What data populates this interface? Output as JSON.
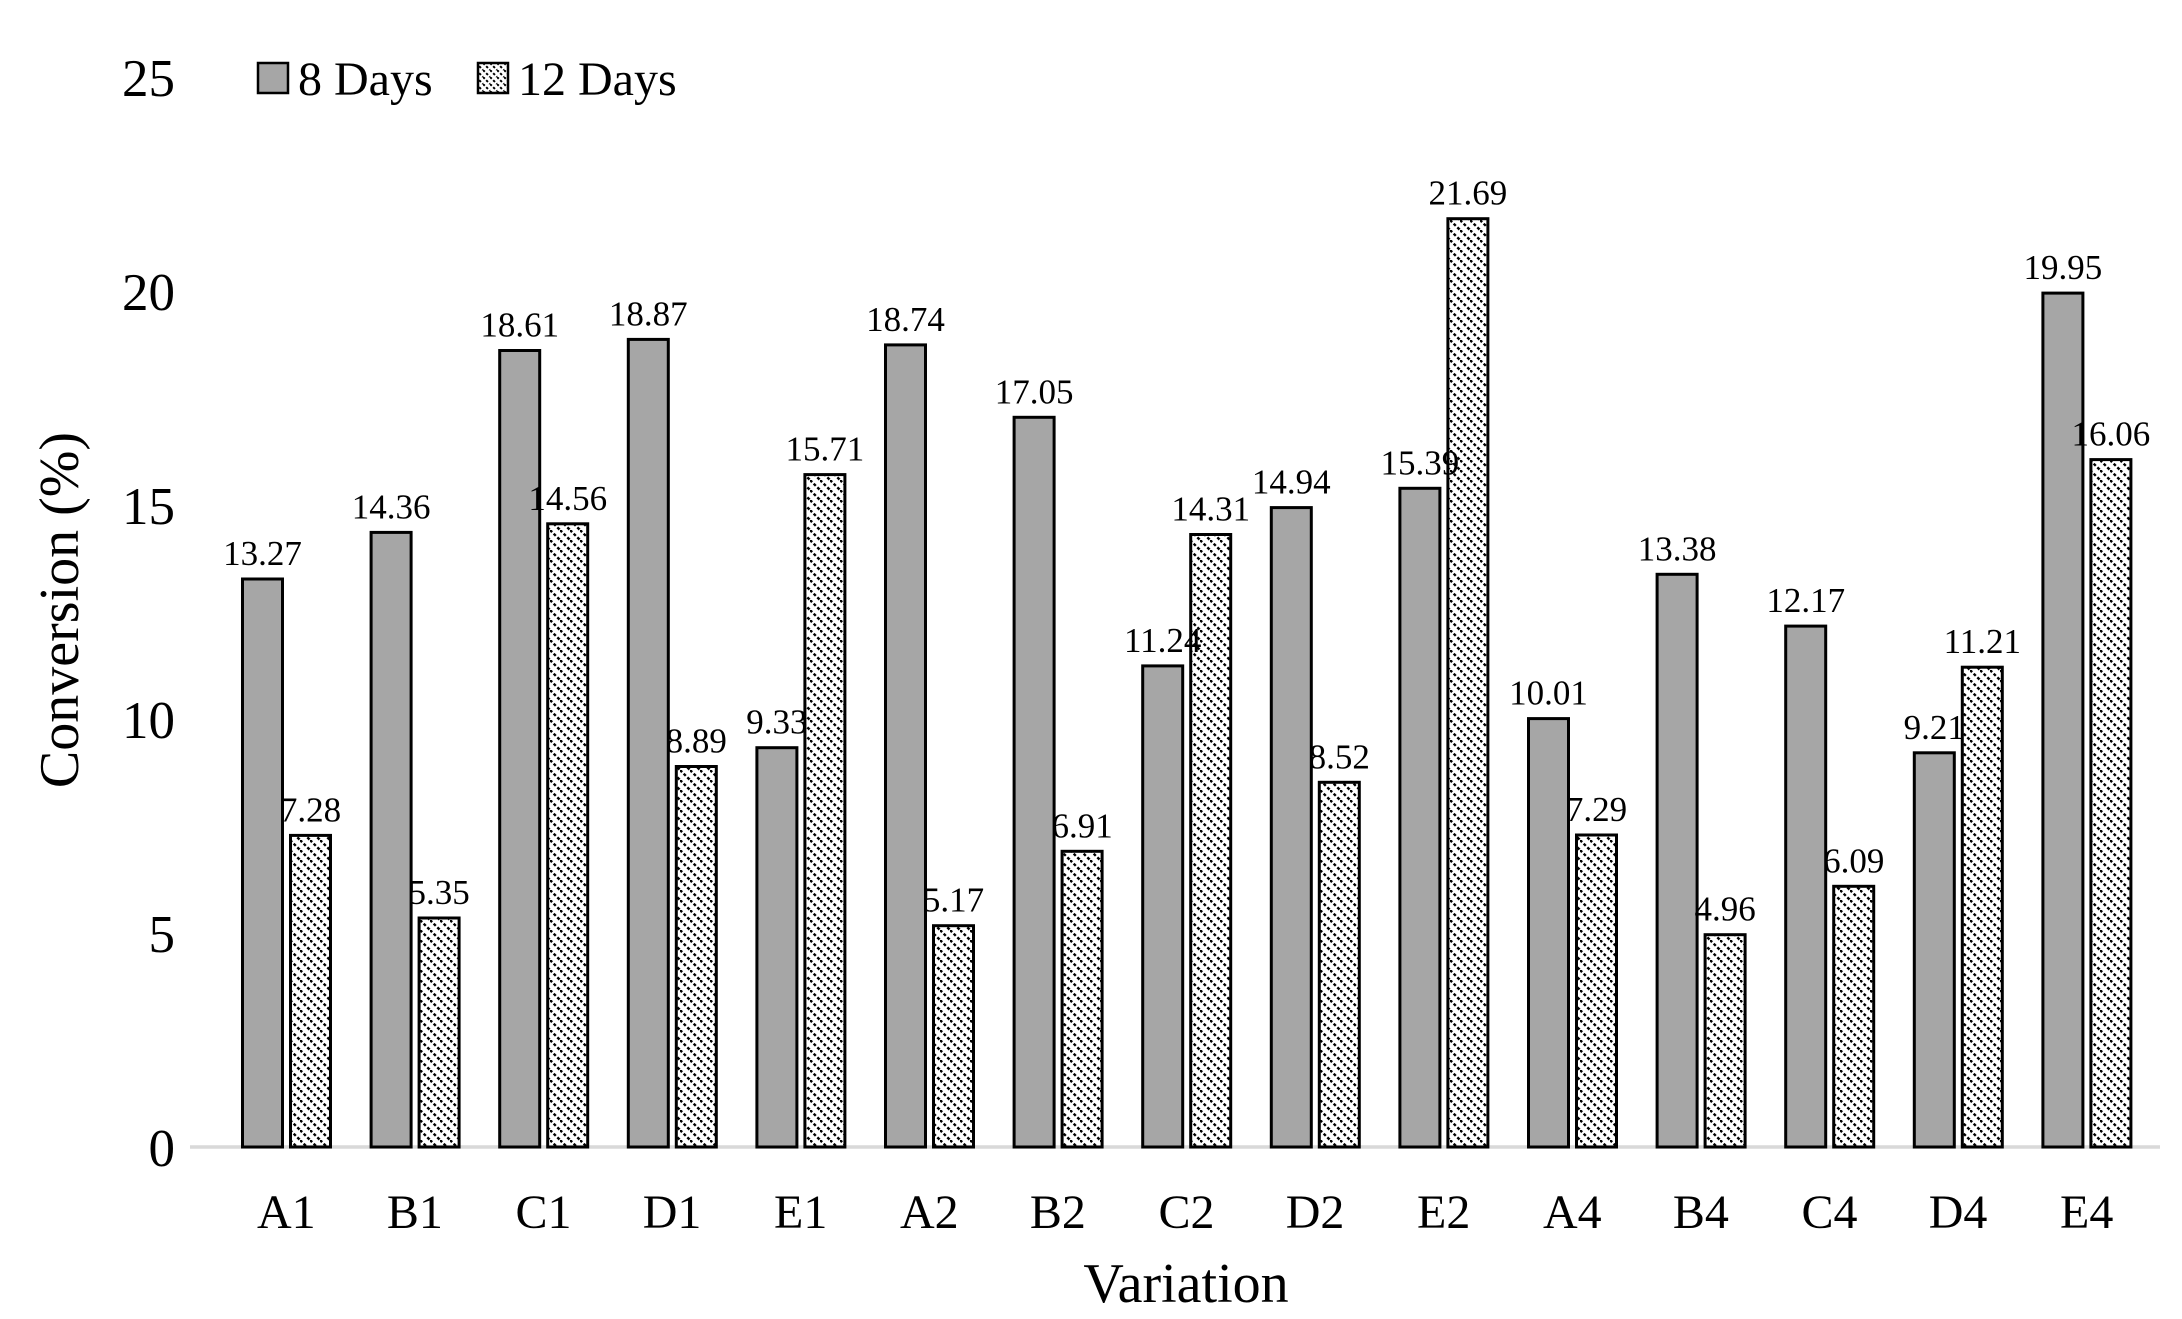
{
  "chart_data": {
    "type": "bar",
    "title": "",
    "xlabel": "Variation",
    "ylabel": "Conversion (%)",
    "categories": [
      "A1",
      "B1",
      "C1",
      "D1",
      "E1",
      "A2",
      "B2",
      "C2",
      "D2",
      "E2",
      "A4",
      "B4",
      "C4",
      "D4",
      "E4"
    ],
    "series": [
      {
        "name": "8 Days",
        "pattern": "solid-gray",
        "values": [
          13.27,
          14.36,
          18.61,
          18.87,
          9.33,
          18.74,
          17.05,
          11.24,
          14.94,
          15.39,
          10.01,
          13.38,
          12.17,
          9.21,
          19.95
        ]
      },
      {
        "name": "12 Days",
        "pattern": "diagonal-hatch",
        "values": [
          7.28,
          5.35,
          14.56,
          8.89,
          15.71,
          5.17,
          6.91,
          14.31,
          8.52,
          21.69,
          7.29,
          4.96,
          6.09,
          11.21,
          16.06
        ]
      }
    ],
    "ylim": [
      0,
      25
    ],
    "yticks": [
      0,
      5,
      10,
      15,
      20,
      25
    ],
    "grid": false,
    "value_labels": true,
    "value_label_decimals": 2,
    "legend_position": "top-left-inside"
  },
  "colors": {
    "background": "#ffffff",
    "bar_fill_gray": "#a6a6a6",
    "bar_border": "#000000",
    "hatch_line": "#000000",
    "axis_line": "#d9d9d9",
    "text": "#000000"
  }
}
